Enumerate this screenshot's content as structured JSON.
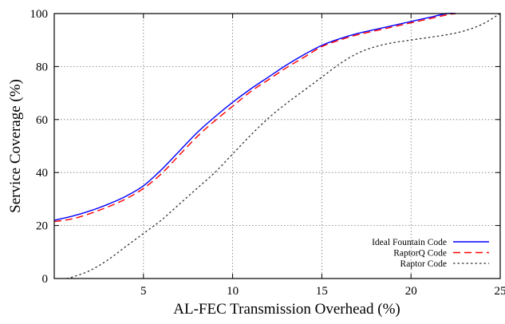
{
  "chart_data": {
    "type": "line",
    "xlabel": "AL-FEC Transmission Overhead (%)",
    "ylabel": "Service Coverage (%)",
    "xlim": [
      0,
      25
    ],
    "ylim": [
      0,
      100
    ],
    "xticks": [
      5,
      10,
      15,
      20,
      25
    ],
    "yticks": [
      0,
      20,
      40,
      60,
      80,
      100
    ],
    "grid": true,
    "legend_position": "bottom-right",
    "series": [
      {
        "name": "Ideal Fountain Code",
        "color": "#0000ff",
        "dash": "solid",
        "x": [
          0,
          1,
          2,
          3,
          4,
          5,
          6,
          7,
          8,
          9,
          10,
          11,
          12,
          13,
          14,
          15,
          16,
          17,
          18,
          19,
          20,
          21,
          22,
          22.5
        ],
        "y": [
          22,
          23.5,
          25.5,
          28,
          31,
          35,
          41,
          48,
          55,
          61,
          66.5,
          71.5,
          76,
          80.5,
          84.5,
          88,
          90.5,
          92.5,
          94,
          95.5,
          97,
          98.5,
          100,
          100
        ]
      },
      {
        "name": "RaptorQ Code",
        "color": "#ff0000",
        "dash": "dashed",
        "x": [
          0,
          1,
          2,
          3,
          4,
          5,
          6,
          7,
          8,
          9,
          10,
          11,
          12,
          13,
          14,
          15,
          16,
          17,
          18,
          19,
          20,
          21,
          22,
          22.5
        ],
        "y": [
          21.5,
          22.5,
          24.5,
          27,
          30,
          34,
          39.5,
          46.5,
          53.5,
          59.5,
          65,
          70.5,
          75,
          79.5,
          83.5,
          87.5,
          90,
          92,
          93.5,
          95,
          96.5,
          98,
          99.5,
          100
        ]
      },
      {
        "name": "Raptor Code",
        "color": "#333333",
        "dash": "dotted",
        "x": [
          0.7,
          1,
          2,
          3,
          4,
          5,
          6,
          7,
          8,
          9,
          10,
          11,
          12,
          13,
          14,
          15,
          16,
          17,
          18,
          19,
          20,
          21,
          22,
          23,
          24,
          25
        ],
        "y": [
          0,
          0.5,
          3,
          7,
          12,
          17,
          22,
          28,
          34,
          40,
          47,
          54,
          60.5,
          66,
          71,
          76,
          81,
          85,
          87.5,
          89,
          90,
          91,
          92,
          93.5,
          96,
          100
        ]
      }
    ]
  }
}
